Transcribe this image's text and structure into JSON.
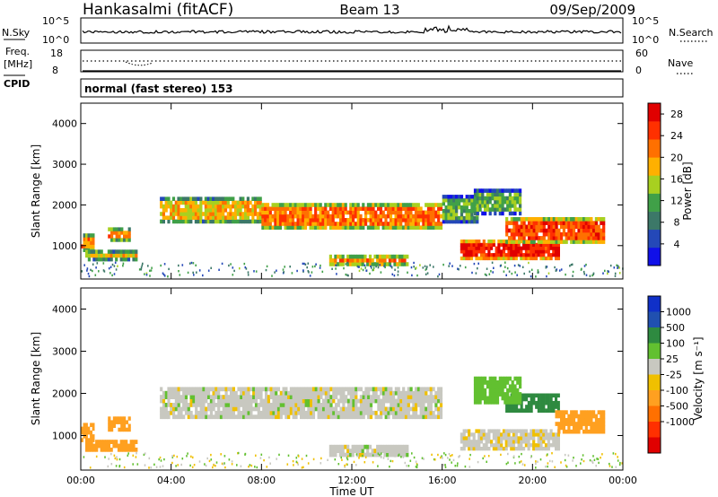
{
  "header": {
    "station": "Hankasalmi (fitACF)",
    "beam": "Beam 13",
    "date": "09/Sep/2009"
  },
  "left_labels": {
    "nsky": "N.Sky",
    "freq": "Freq.",
    "freq_unit": "[MHz]",
    "cpid": "CPID"
  },
  "right_labels": {
    "nsearch": "N.Search",
    "nave": "Nave"
  },
  "cpid_text": "normal (fast stereo) 153",
  "noise_axis": {
    "top": "10^5",
    "bottom": "10^0"
  },
  "freq_axis": {
    "top": "18",
    "bottom": "8"
  },
  "nave_axis": {
    "top": "60",
    "bottom": "0"
  },
  "colors": {
    "power": [
      "#1010e8",
      "#2448b8",
      "#3c7868",
      "#40a048",
      "#a8d020",
      "#ffb000",
      "#ff7000",
      "#ff3000",
      "#e00000"
    ],
    "velocity": [
      "#1030c8",
      "#2050b0",
      "#2e8a40",
      "#62c030",
      "#c8c8c0",
      "#f0c000",
      "#ffa020",
      "#ff7000",
      "#ff3000",
      "#e00000"
    ]
  },
  "chart_data": [
    {
      "type": "heatmap",
      "name": "Power",
      "xlabel": "Time UT",
      "ylabel": "Slant Range [km]",
      "x_ticks": [
        "00:00",
        "04:00",
        "08:00",
        "12:00",
        "16:00",
        "20:00",
        "00:00"
      ],
      "y_ticks": [
        1000,
        2000,
        3000,
        4000
      ],
      "xlim": [
        0,
        24
      ],
      "ylim": [
        180,
        4500
      ],
      "colorbar": {
        "label": "Power [dB]",
        "ticks": [
          4,
          8,
          12,
          16,
          20,
          24,
          28
        ],
        "range": [
          0,
          30
        ]
      },
      "regions": [
        {
          "t": [
            0.0,
            0.6
          ],
          "r": [
            850,
            1300
          ],
          "value": 20
        },
        {
          "t": [
            0.2,
            2.5
          ],
          "r": [
            620,
            900
          ],
          "value": 18
        },
        {
          "t": [
            1.2,
            2.2
          ],
          "r": [
            1100,
            1450
          ],
          "value": 20
        },
        {
          "t": [
            3.5,
            8.0
          ],
          "r": [
            1550,
            2200
          ],
          "value": 18
        },
        {
          "t": [
            8.0,
            16.0
          ],
          "r": [
            1400,
            2050
          ],
          "value": 22
        },
        {
          "t": [
            16.0,
            17.6
          ],
          "r": [
            1550,
            2250
          ],
          "value": 12
        },
        {
          "t": [
            11.0,
            14.5
          ],
          "r": [
            500,
            780
          ],
          "value": 22
        },
        {
          "t": [
            16.8,
            21.2
          ],
          "r": [
            650,
            1150
          ],
          "value": 27
        },
        {
          "t": [
            18.8,
            23.2
          ],
          "r": [
            1050,
            1700
          ],
          "value": 24
        },
        {
          "t": [
            17.4,
            19.5
          ],
          "r": [
            1750,
            2400
          ],
          "value": 12
        }
      ]
    },
    {
      "type": "heatmap",
      "name": "Velocity",
      "xlabel": "Time UT",
      "ylabel": "Slant Range [km]",
      "x_ticks": [
        "00:00",
        "04:00",
        "08:00",
        "12:00",
        "16:00",
        "20:00",
        "00:00"
      ],
      "y_ticks": [
        1000,
        2000,
        3000,
        4000
      ],
      "xlim": [
        0,
        24
      ],
      "ylim": [
        180,
        4500
      ],
      "colorbar": {
        "label": "Velocity [m s⁻¹]",
        "ticks": [
          1000,
          500,
          100,
          25,
          -25,
          -100,
          -500,
          -1000
        ]
      },
      "regions": [
        {
          "t": [
            0.0,
            0.6
          ],
          "r": [
            850,
            1300
          ],
          "value": -300
        },
        {
          "t": [
            0.2,
            2.5
          ],
          "r": [
            620,
            900
          ],
          "value": -200
        },
        {
          "t": [
            1.2,
            2.2
          ],
          "r": [
            1100,
            1450
          ],
          "value": -300
        },
        {
          "t": [
            3.5,
            16.0
          ],
          "r": [
            1400,
            2150
          ],
          "value": 0
        },
        {
          "t": [
            11.0,
            14.5
          ],
          "r": [
            500,
            780
          ],
          "value": 0
        },
        {
          "t": [
            16.8,
            21.2
          ],
          "r": [
            650,
            1150
          ],
          "value": -10
        },
        {
          "t": [
            18.8,
            21.2
          ],
          "r": [
            1550,
            2000
          ],
          "value": 150
        },
        {
          "t": [
            21.0,
            23.2
          ],
          "r": [
            1050,
            1600
          ],
          "value": -300
        },
        {
          "t": [
            17.4,
            19.5
          ],
          "r": [
            1750,
            2400
          ],
          "value": 60
        }
      ]
    }
  ]
}
